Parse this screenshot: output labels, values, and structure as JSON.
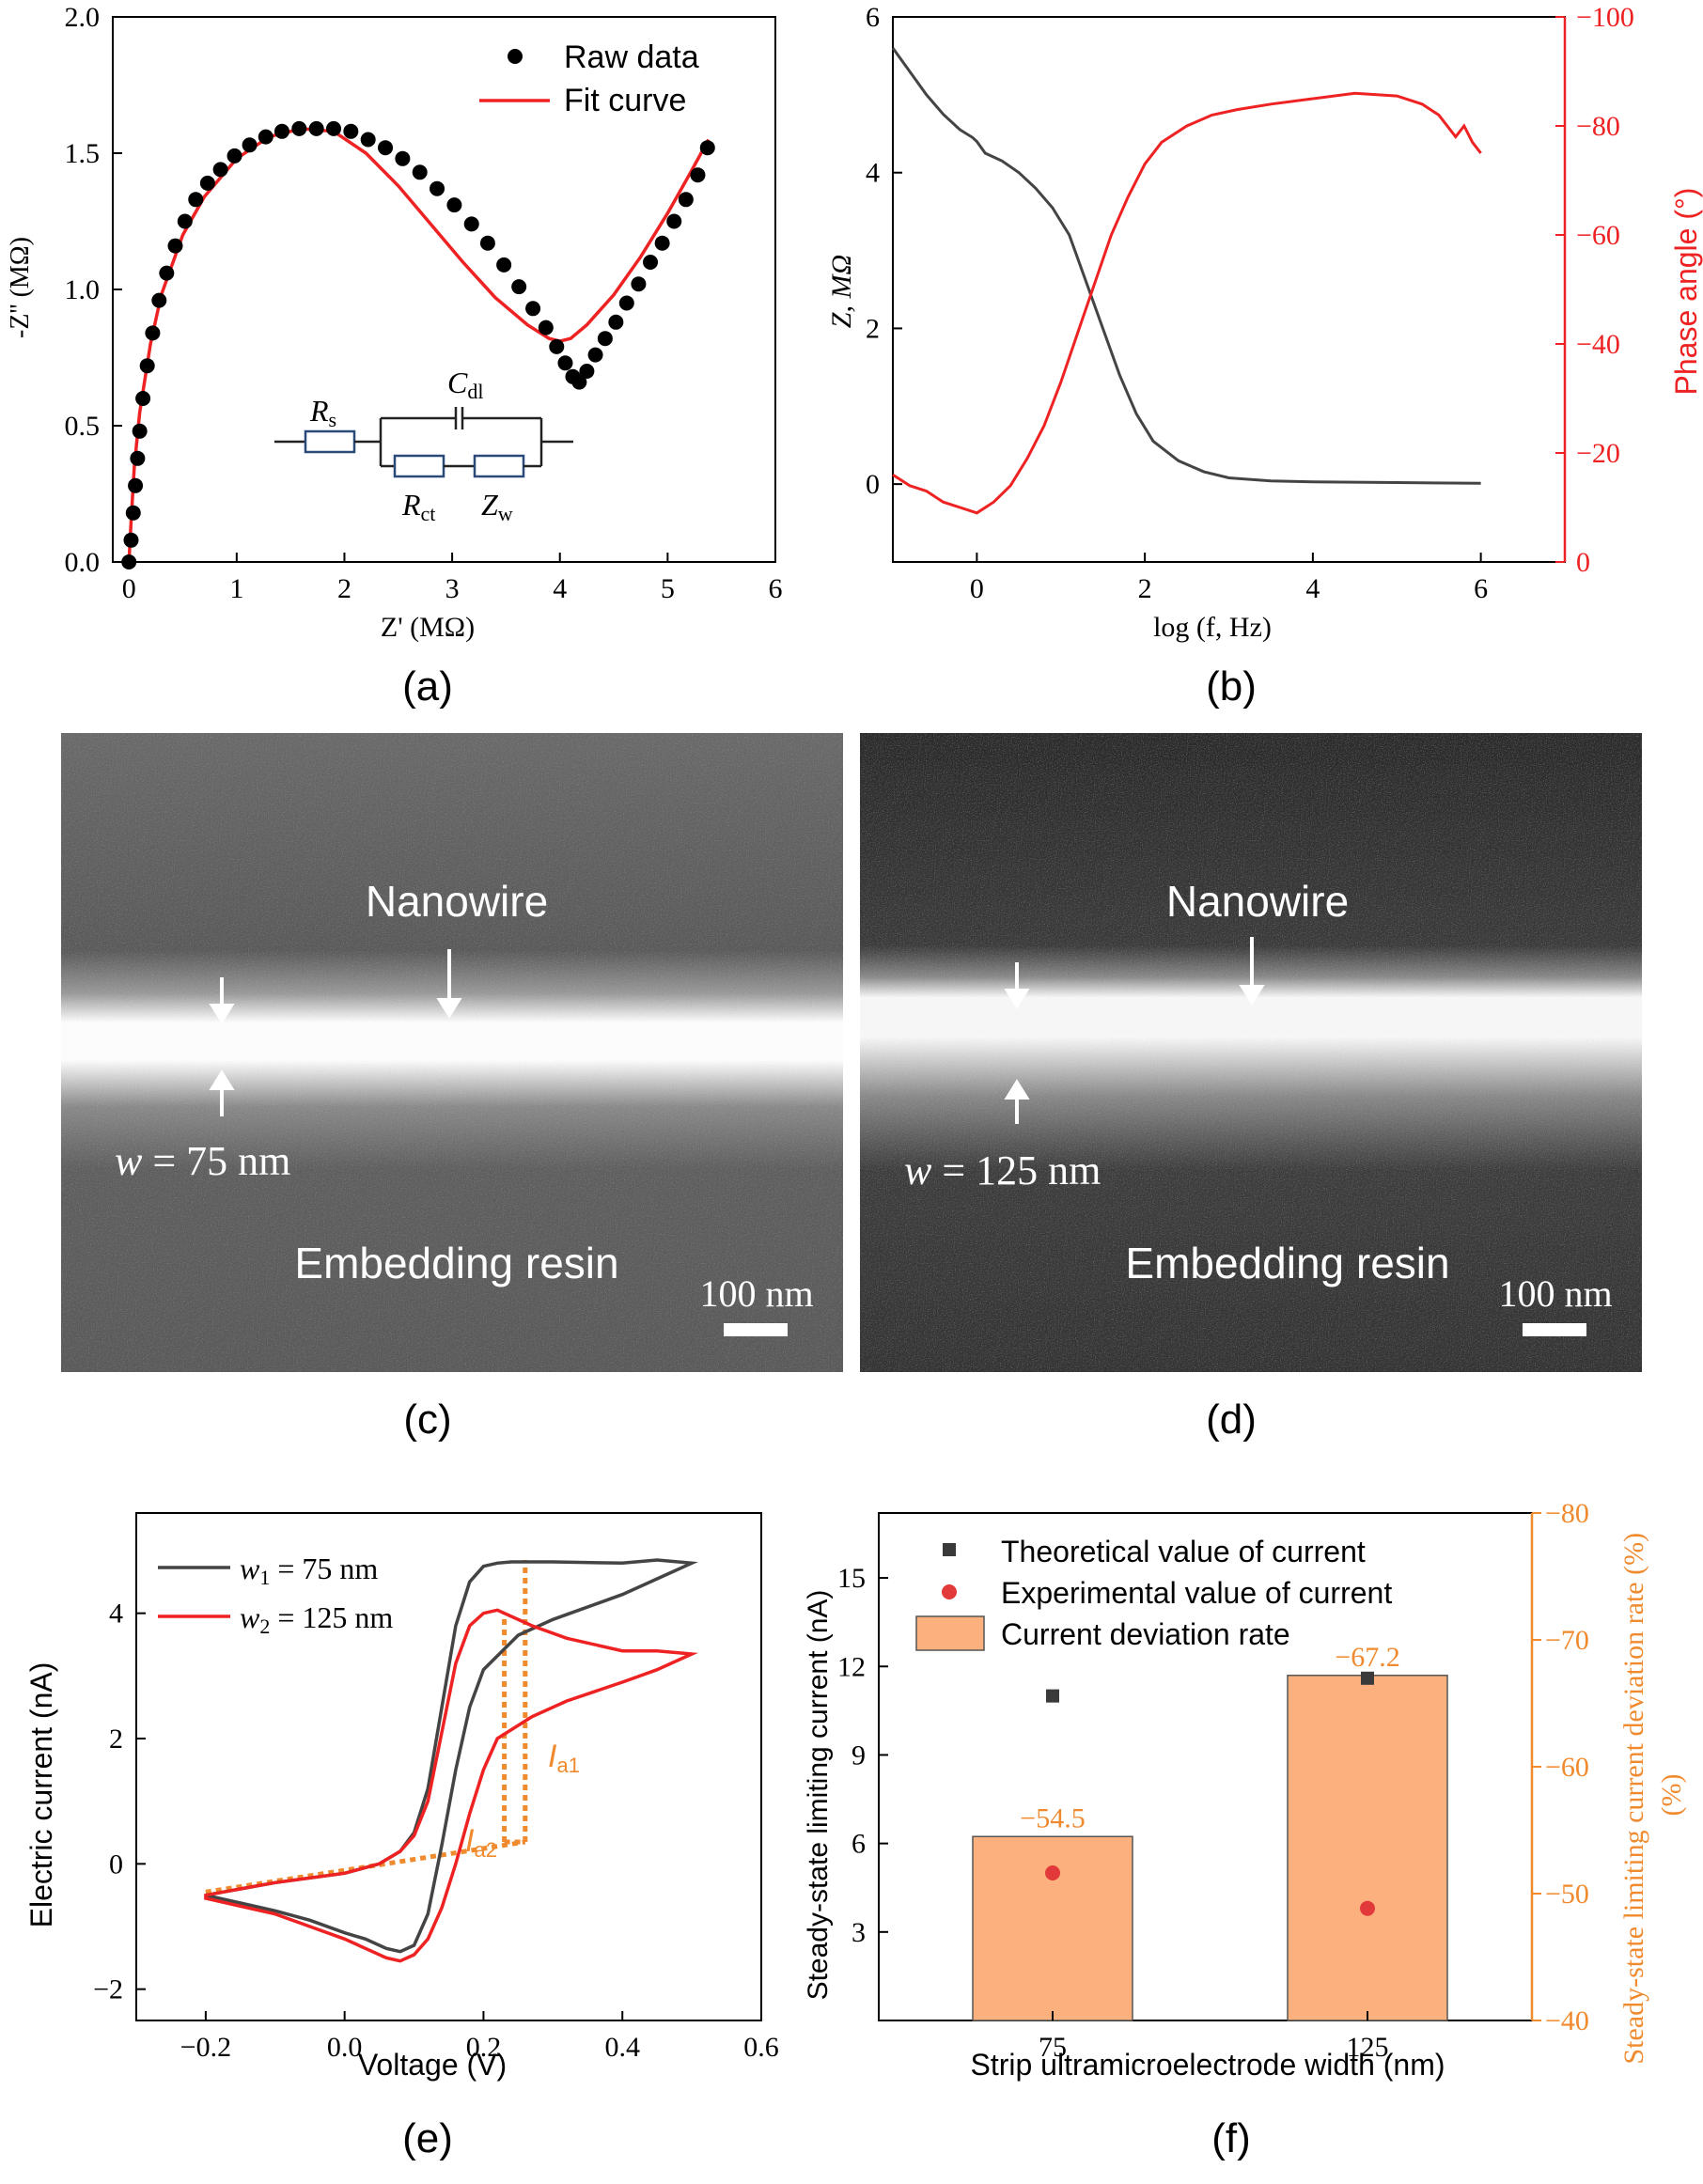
{
  "panels": {
    "a": {
      "label": "(a)"
    },
    "b": {
      "label": "(b)"
    },
    "c": {
      "label": "(c)"
    },
    "d": {
      "label": "(d)"
    },
    "e": {
      "label": "(e)"
    },
    "f": {
      "label": "(f)"
    }
  },
  "chart_data": [
    {
      "panel": "a",
      "type": "scatter",
      "xlabel": "Z' (MΩ)",
      "ylabel": "-Z'' (MΩ)",
      "xlim": [
        -0.15,
        6
      ],
      "ylim": [
        0,
        2.0
      ],
      "xticks": [
        0,
        1,
        2,
        3,
        4,
        5,
        6
      ],
      "yticks": [
        0.0,
        0.5,
        1.0,
        1.5,
        2.0
      ],
      "legend": [
        "Raw data",
        "Fit curve"
      ],
      "legend_placement": "top-right",
      "colors": {
        "raw": "#000000",
        "fit": "#ee2222"
      },
      "series": [
        {
          "name": "Raw data",
          "x": [
            0.0,
            0.02,
            0.04,
            0.06,
            0.08,
            0.1,
            0.13,
            0.17,
            0.22,
            0.28,
            0.35,
            0.43,
            0.52,
            0.62,
            0.73,
            0.85,
            0.98,
            1.12,
            1.27,
            1.42,
            1.58,
            1.74,
            1.9,
            2.06,
            2.22,
            2.38,
            2.54,
            2.7,
            2.86,
            3.02,
            3.18,
            3.33,
            3.48,
            3.62,
            3.75,
            3.87,
            3.97,
            4.05,
            4.12,
            4.18,
            4.25,
            4.33,
            4.42,
            4.52,
            4.62,
            4.73,
            4.84,
            4.95,
            5.06,
            5.17,
            5.28,
            5.37
          ],
          "y": [
            0.0,
            0.08,
            0.18,
            0.28,
            0.38,
            0.48,
            0.6,
            0.72,
            0.84,
            0.96,
            1.06,
            1.16,
            1.25,
            1.33,
            1.39,
            1.44,
            1.49,
            1.53,
            1.56,
            1.58,
            1.59,
            1.59,
            1.59,
            1.58,
            1.55,
            1.52,
            1.48,
            1.43,
            1.37,
            1.31,
            1.24,
            1.17,
            1.09,
            1.01,
            0.93,
            0.86,
            0.79,
            0.73,
            0.68,
            0.66,
            0.7,
            0.76,
            0.82,
            0.88,
            0.95,
            1.02,
            1.1,
            1.17,
            1.25,
            1.33,
            1.42,
            1.52
          ]
        },
        {
          "name": "Fit curve",
          "x": [
            0.0,
            0.02,
            0.05,
            0.1,
            0.2,
            0.3,
            0.5,
            0.7,
            1.0,
            1.3,
            1.6,
            1.9,
            2.2,
            2.5,
            2.8,
            3.1,
            3.4,
            3.7,
            3.9,
            4.0,
            4.1,
            4.25,
            4.5,
            4.75,
            5.0,
            5.2,
            5.38
          ],
          "y": [
            0.0,
            0.15,
            0.35,
            0.55,
            0.8,
            0.98,
            1.2,
            1.34,
            1.48,
            1.56,
            1.59,
            1.58,
            1.5,
            1.38,
            1.24,
            1.1,
            0.97,
            0.87,
            0.82,
            0.81,
            0.82,
            0.87,
            0.98,
            1.12,
            1.28,
            1.42,
            1.55
          ]
        }
      ],
      "circuit": {
        "rs": "R",
        "rs_sub": "s",
        "cdl": "C",
        "cdl_sub": "dl",
        "rct": "R",
        "rct_sub": "ct",
        "zw": "Z",
        "zw_sub": "w"
      }
    },
    {
      "panel": "b",
      "type": "line",
      "xlabel": "log (f, Hz)",
      "ylabel": "Z, MΩ",
      "ylabel_right": "Phase angle (°)",
      "xlim": [
        -1,
        7
      ],
      "ylim": [
        -1,
        6
      ],
      "ylim_right": [
        0,
        -100
      ],
      "xticks": [
        0,
        2,
        4,
        6
      ],
      "yticks": [
        0,
        2,
        4,
        6
      ],
      "yticks_right": [
        "0",
        "−20",
        "−40",
        "−60",
        "−80",
        "−100"
      ],
      "colors": {
        "z": "#444444",
        "phase": "#ee2222"
      },
      "series": [
        {
          "name": "Z",
          "x": [
            -1.0,
            -0.8,
            -0.6,
            -0.4,
            -0.2,
            -0.05,
            0.0,
            0.1,
            0.3,
            0.5,
            0.7,
            0.9,
            1.1,
            1.3,
            1.5,
            1.7,
            1.9,
            2.1,
            2.4,
            2.7,
            3.0,
            3.5,
            4.0,
            5.0,
            6.0
          ],
          "y": [
            5.6,
            5.3,
            5.0,
            4.75,
            4.55,
            4.45,
            4.4,
            4.25,
            4.15,
            4.0,
            3.8,
            3.55,
            3.2,
            2.6,
            2.0,
            1.4,
            0.9,
            0.55,
            0.3,
            0.16,
            0.08,
            0.04,
            0.03,
            0.02,
            0.01
          ]
        },
        {
          "name": "Phase",
          "x": [
            -1.0,
            -0.8,
            -0.6,
            -0.4,
            -0.2,
            0.0,
            0.2,
            0.4,
            0.6,
            0.8,
            1.0,
            1.2,
            1.4,
            1.6,
            1.8,
            2.0,
            2.2,
            2.5,
            2.8,
            3.1,
            3.5,
            4.0,
            4.5,
            5.0,
            5.3,
            5.5,
            5.7,
            5.8,
            5.9,
            6.0
          ],
          "y": [
            -16,
            -14,
            -13,
            -11,
            -10,
            -9,
            -11,
            -14,
            -19,
            -25,
            -33,
            -42,
            -51,
            -60,
            -67,
            -73,
            -77,
            -80,
            -82,
            -83,
            -84,
            -85,
            -86,
            -85.5,
            -84,
            -82,
            -78,
            -80,
            -77,
            -75
          ]
        }
      ]
    },
    {
      "panel": "e",
      "type": "line",
      "xlabel": "Voltage (V)",
      "ylabel": "Electric current (nA)",
      "xlim": [
        -0.3,
        0.6
      ],
      "ylim": [
        -2.5,
        5.6
      ],
      "xticks": [
        "−0.2",
        "0.0",
        "0.2",
        "0.4",
        "0.6"
      ],
      "yticks": [
        "−2",
        "0",
        "2",
        "4"
      ],
      "colors": {
        "w1": "#444444",
        "w2": "#ee2222",
        "guide": "#f08a2e"
      },
      "legend": [
        {
          "sym": "w",
          "sub": "1",
          "rest": " = 75 nm"
        },
        {
          "sym": "w",
          "sub": "2",
          "rest": " = 125 nm"
        }
      ],
      "annotations": [
        {
          "sym": "I",
          "sub": "a1"
        },
        {
          "sym": "I",
          "sub": "a2"
        }
      ],
      "series": [
        {
          "name": "w1 = 75 nm",
          "x": [
            -0.2,
            -0.1,
            0.0,
            0.05,
            0.08,
            0.1,
            0.12,
            0.14,
            0.16,
            0.18,
            0.2,
            0.22,
            0.24,
            0.3,
            0.4,
            0.45,
            0.5,
            0.45,
            0.4,
            0.3,
            0.25,
            0.2,
            0.18,
            0.16,
            0.14,
            0.12,
            0.1,
            0.08,
            0.06,
            0.03,
            0.0,
            -0.05,
            -0.1,
            -0.2
          ],
          "y": [
            -0.5,
            -0.3,
            -0.15,
            0.0,
            0.2,
            0.5,
            1.2,
            2.5,
            3.8,
            4.5,
            4.75,
            4.8,
            4.82,
            4.82,
            4.8,
            4.85,
            4.8,
            4.55,
            4.3,
            3.9,
            3.65,
            3.1,
            2.5,
            1.5,
            0.3,
            -0.8,
            -1.3,
            -1.4,
            -1.35,
            -1.2,
            -1.1,
            -0.9,
            -0.75,
            -0.5
          ]
        },
        {
          "name": "w2 = 125 nm",
          "x": [
            -0.2,
            -0.1,
            0.0,
            0.05,
            0.08,
            0.1,
            0.12,
            0.14,
            0.16,
            0.18,
            0.2,
            0.22,
            0.24,
            0.27,
            0.32,
            0.4,
            0.45,
            0.5,
            0.45,
            0.4,
            0.32,
            0.27,
            0.22,
            0.2,
            0.18,
            0.16,
            0.14,
            0.12,
            0.1,
            0.08,
            0.06,
            0.03,
            0.0,
            -0.05,
            -0.1,
            -0.2
          ],
          "y": [
            -0.5,
            -0.3,
            -0.15,
            0.0,
            0.2,
            0.45,
            1.0,
            2.1,
            3.2,
            3.8,
            4.0,
            4.05,
            3.95,
            3.8,
            3.6,
            3.4,
            3.4,
            3.35,
            3.1,
            2.9,
            2.6,
            2.35,
            2.0,
            1.5,
            0.8,
            0.0,
            -0.7,
            -1.2,
            -1.45,
            -1.55,
            -1.5,
            -1.35,
            -1.2,
            -1.0,
            -0.8,
            -0.55
          ]
        }
      ]
    },
    {
      "panel": "f",
      "type": "bar",
      "xlabel": "Strip ultramicroelectrode width (nm)",
      "ylabel": "Steady-state limiting current (nA)",
      "ylabel_right": "Steady-state limiting current  deviation rate (%)",
      "categories": [
        "75",
        "125"
      ],
      "ylim": [
        0,
        17.2
      ],
      "ylim_right": [
        -40,
        -80
      ],
      "yticks": [
        3,
        6,
        9,
        12,
        15
      ],
      "yticks_right": [
        "−40",
        "−50",
        "−60",
        "−70",
        "−80"
      ],
      "colors": {
        "bar": "#fbb07e",
        "theo": "#3a3a3a",
        "exp": "#e23a3a",
        "axis_right": "#f08a2e"
      },
      "legend": [
        "Theoretical value of current",
        "Experimental value of current",
        "Current deviation rate"
      ],
      "series": [
        {
          "name": "Theoretical value of current",
          "values": [
            11.0,
            11.6
          ]
        },
        {
          "name": "Experimental value of current",
          "values": [
            5.0,
            3.8
          ]
        },
        {
          "name": "Current deviation rate",
          "values": [
            -54.5,
            -67.2
          ],
          "labels": [
            "−54.5",
            "−67.2"
          ]
        }
      ]
    }
  ],
  "micrographs": {
    "c": {
      "top_label": "Nanowire",
      "bottom_label": "Embedding resin",
      "width_sym": "w",
      "width_text": " = 75 nm",
      "scale_text": "100 nm"
    },
    "d": {
      "top_label": "Nanowire",
      "bottom_label": "Embedding resin",
      "width_sym": "w",
      "width_text": " = 125 nm",
      "scale_text": "100 nm"
    }
  }
}
